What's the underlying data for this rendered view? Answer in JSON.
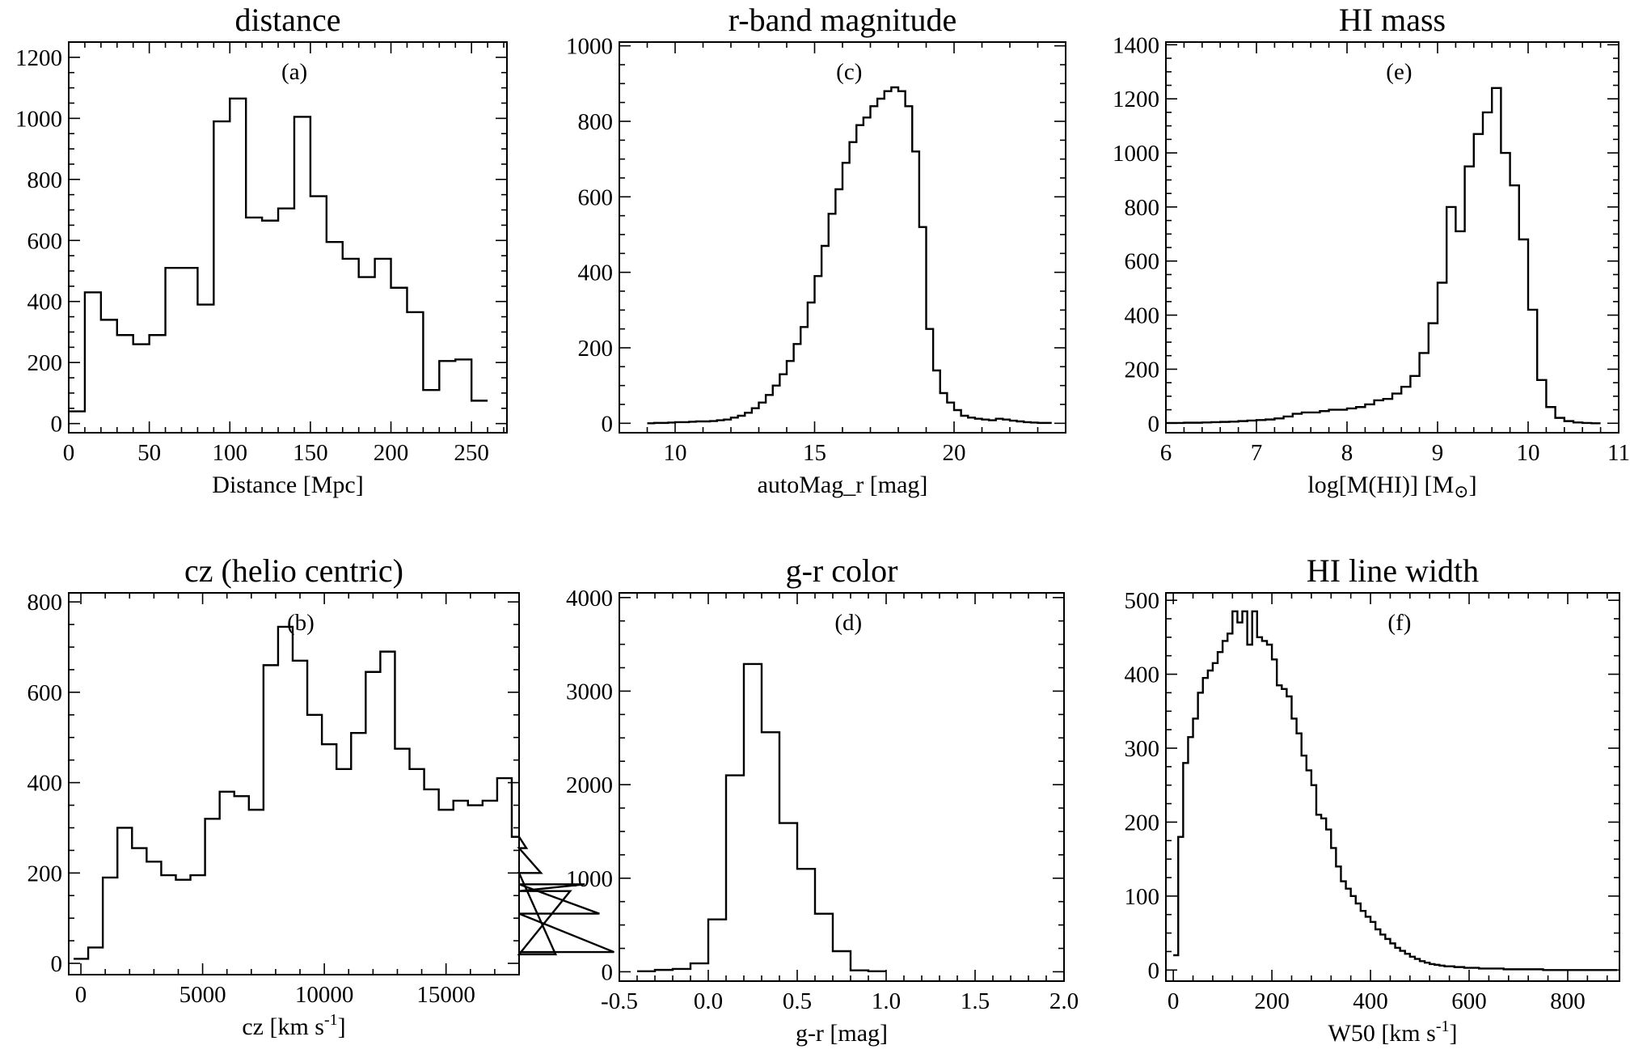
{
  "chart_data": [
    {
      "type": "histogram",
      "panel": "(a)",
      "title": "distance",
      "xlabel": "Distance [Mpc]",
      "ylabel": "",
      "xlim": [
        0,
        272
      ],
      "ylim": [
        -30,
        1250
      ],
      "xticks": [
        0,
        50,
        100,
        150,
        200,
        250
      ],
      "yticks": [
        0,
        200,
        400,
        600,
        800,
        1000,
        1200
      ],
      "xtick_labels": [
        "0",
        "50",
        "100",
        "150",
        "200",
        "250"
      ],
      "ytick_labels": [
        "0",
        "200",
        "400",
        "600",
        "800",
        "1000",
        "1200"
      ],
      "bin_width": 10,
      "bin_edges_start": 0,
      "values": [
        40,
        430,
        340,
        290,
        260,
        290,
        510,
        510,
        390,
        990,
        1065,
        675,
        665,
        705,
        1005,
        745,
        595,
        540,
        480,
        540,
        445,
        365,
        110,
        205,
        210,
        75
      ]
    },
    {
      "type": "histogram",
      "panel": "(b)",
      "title": "cz (helio centric)",
      "xlabel": "cz [km s",
      "xlabel_sup": "-1",
      "xlabel_end": "]",
      "ylabel": "",
      "xlim": [
        -500,
        18000
      ],
      "ylim": [
        -25,
        820
      ],
      "xticks": [
        0,
        5000,
        10000,
        15000
      ],
      "yticks": [
        0,
        200,
        400,
        600,
        800
      ],
      "xtick_labels": [
        "0",
        "5000",
        "10000",
        "15000"
      ],
      "ytick_labels": [
        "0",
        "200",
        "400",
        "600",
        "800"
      ],
      "bin_width": 600,
      "bin_edges_start": -300,
      "values": [
        10,
        35,
        190,
        300,
        255,
        225,
        195,
        185,
        195,
        320,
        380,
        370,
        340,
        660,
        745,
        670,
        550,
        485,
        430,
        510,
        645,
        690,
        475,
        430,
        385,
        340,
        360,
        350,
        360,
        410,
        280,
        255,
        200,
        20,
        160,
        175,
        110,
        25
      ]
    },
    {
      "type": "histogram",
      "panel": "(c)",
      "title": "r-band magnitude",
      "xlabel": "autoMag_r [mag]",
      "ylabel": "",
      "xlim": [
        8,
        24
      ],
      "ylim": [
        -25,
        1010
      ],
      "xticks": [
        10,
        15,
        20
      ],
      "yticks": [
        0,
        200,
        400,
        600,
        800,
        1000
      ],
      "xtick_labels": [
        "10",
        "15",
        "20"
      ],
      "ytick_labels": [
        "0",
        "200",
        "400",
        "600",
        "800",
        "1000"
      ],
      "bin_width": 0.25,
      "bin_edges_start": 9,
      "values": [
        0,
        1,
        1,
        2,
        3,
        3,
        4,
        5,
        5,
        6,
        8,
        10,
        15,
        20,
        28,
        40,
        55,
        75,
        100,
        130,
        165,
        210,
        255,
        320,
        390,
        470,
        555,
        620,
        690,
        745,
        790,
        810,
        840,
        860,
        880,
        890,
        880,
        840,
        720,
        520,
        250,
        140,
        80,
        55,
        35,
        20,
        15,
        12,
        10,
        8,
        12,
        10,
        7,
        5,
        3,
        2,
        1,
        1
      ]
    },
    {
      "type": "histogram",
      "panel": "(d)",
      "title": "g-r color",
      "xlabel": "g-r [mag]",
      "ylabel": "",
      "xlim": [
        -0.5,
        2.0
      ],
      "ylim": [
        -100,
        4050
      ],
      "xticks": [
        -0.5,
        0.0,
        0.5,
        1.0,
        1.5,
        2.0
      ],
      "yticks": [
        0,
        1000,
        2000,
        3000,
        4000
      ],
      "xtick_labels": [
        "-0.5",
        "0.0",
        "0.5",
        "1.0",
        "1.5",
        "2.0"
      ],
      "ytick_labels": [
        "0",
        "1000",
        "2000",
        "3000",
        "4000"
      ],
      "bin_width": 0.1,
      "bin_edges_start": -0.4,
      "values": [
        5,
        20,
        30,
        90,
        560,
        2100,
        3290,
        2560,
        1590,
        1100,
        620,
        220,
        15,
        5
      ]
    },
    {
      "type": "histogram",
      "panel": "(e)",
      "title": "HI mass",
      "xlabel": "log[M(HI)] [M",
      "xlabel_sun": true,
      "xlabel_end": "]",
      "ylabel": "",
      "xlim": [
        6,
        11
      ],
      "ylim": [
        -35,
        1410
      ],
      "xticks": [
        6,
        7,
        8,
        9,
        10,
        11
      ],
      "yticks": [
        0,
        200,
        400,
        600,
        800,
        1000,
        1200,
        1400
      ],
      "xtick_labels": [
        "6",
        "7",
        "8",
        "9",
        "10",
        "11"
      ],
      "ytick_labels": [
        "0",
        "200",
        "400",
        "600",
        "800",
        "1000",
        "1200",
        "1400"
      ],
      "bin_width": 0.1,
      "bin_edges_start": 6.0,
      "values": [
        1,
        1,
        2,
        2,
        3,
        4,
        5,
        6,
        8,
        10,
        12,
        14,
        18,
        25,
        35,
        40,
        40,
        45,
        50,
        50,
        55,
        60,
        70,
        85,
        90,
        110,
        135,
        175,
        260,
        370,
        520,
        800,
        710,
        950,
        1070,
        1150,
        1240,
        1000,
        880,
        680,
        420,
        160,
        60,
        20,
        8,
        3,
        1,
        0
      ]
    },
    {
      "type": "histogram",
      "panel": "(f)",
      "title": "HI line width",
      "xlabel": "W50 [km s",
      "xlabel_sup": "-1",
      "xlabel_end": "]",
      "ylabel": "",
      "xlim": [
        -15,
        905
      ],
      "ylim": [
        -15,
        510
      ],
      "xticks": [
        0,
        200,
        400,
        600,
        800
      ],
      "yticks": [
        0,
        100,
        200,
        300,
        400,
        500
      ],
      "xtick_labels": [
        "0",
        "200",
        "400",
        "600",
        "800"
      ],
      "ytick_labels": [
        "0",
        "100",
        "200",
        "300",
        "400",
        "500"
      ],
      "bin_width": 10,
      "bin_edges_start": 0,
      "values": [
        20,
        180,
        280,
        315,
        340,
        375,
        395,
        405,
        415,
        430,
        445,
        455,
        485,
        470,
        485,
        440,
        485,
        450,
        445,
        440,
        420,
        385,
        380,
        370,
        340,
        320,
        290,
        270,
        250,
        210,
        205,
        190,
        165,
        140,
        120,
        110,
        100,
        90,
        80,
        72,
        65,
        55,
        48,
        42,
        36,
        30,
        26,
        22,
        18,
        15,
        12,
        10,
        8,
        7,
        6,
        5,
        5,
        4,
        4,
        3,
        3,
        3,
        2,
        2,
        2,
        2,
        2,
        1,
        1,
        1,
        1,
        1,
        1,
        1,
        1,
        0,
        0,
        0,
        0,
        0,
        0,
        0,
        0,
        0,
        0,
        0,
        0,
        0,
        0,
        0
      ]
    }
  ]
}
